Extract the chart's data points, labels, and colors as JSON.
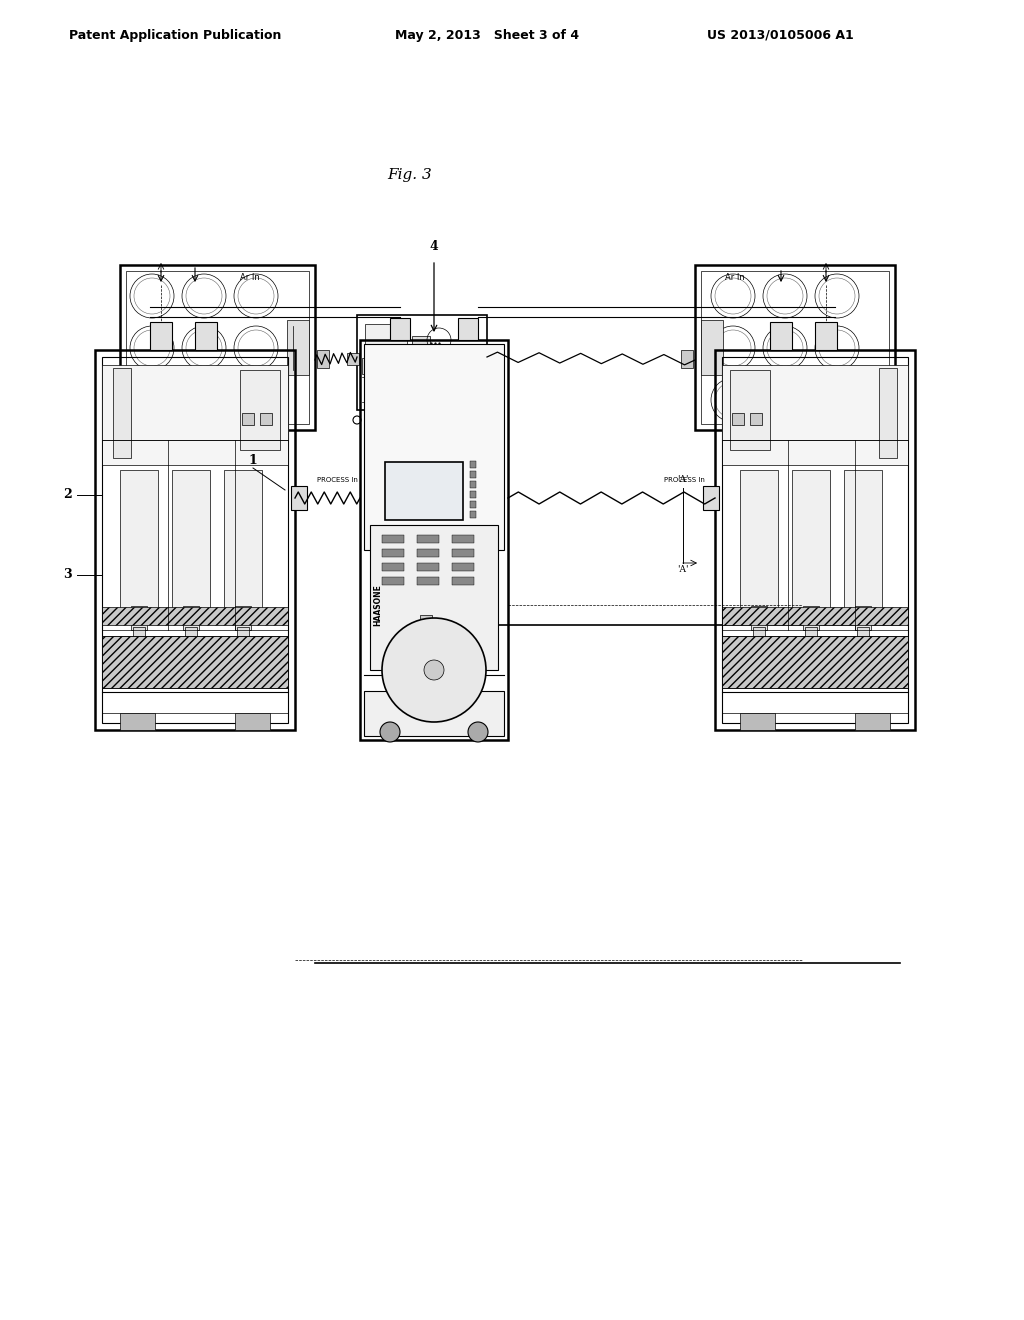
{
  "background_color": "#ffffff",
  "header_left": "Patent Application Publication",
  "header_mid": "May 2, 2013   Sheet 3 of 4",
  "header_right": "US 2013/0105006 A1",
  "fig_label": "Fig. 3"
}
